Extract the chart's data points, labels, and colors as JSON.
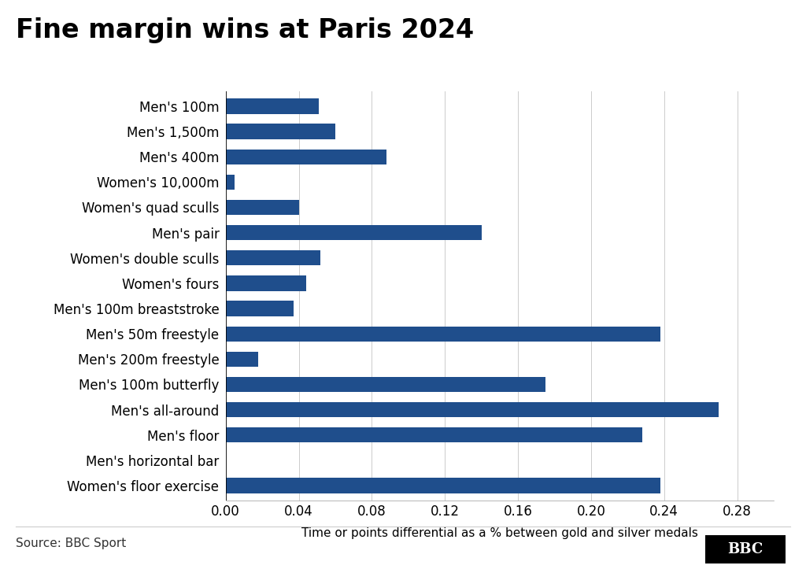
{
  "title": "Fine margin wins at Paris 2024",
  "categories": [
    "Men's 100m",
    "Men's 1,500m",
    "Men's 400m",
    "Women's 10,000m",
    "Women's quad sculls",
    "Men's pair",
    "Women's double sculls",
    "Women's fours",
    "Men's 100m breaststroke",
    "Men's 50m freestyle",
    "Men's 200m freestyle",
    "Men's 100m butterfly",
    "Men's all-around",
    "Men's floor",
    "Men's horizontal bar",
    "Women's floor exercise"
  ],
  "values": [
    0.051,
    0.06,
    0.088,
    0.005,
    0.04,
    0.14,
    0.052,
    0.044,
    0.037,
    0.238,
    0.018,
    0.175,
    0.27,
    0.228,
    0.0,
    0.238
  ],
  "bar_color": "#1f4e8c",
  "xlabel": "Time or points differential as a % between gold and silver medals",
  "xlim": [
    0,
    0.3
  ],
  "xticks": [
    0.0,
    0.04,
    0.08,
    0.12,
    0.16,
    0.2,
    0.24,
    0.28
  ],
  "xtick_labels": [
    "0.00",
    "0.04",
    "0.08",
    "0.12",
    "0.16",
    "0.20",
    "0.24",
    "0.28"
  ],
  "background_color": "#ffffff",
  "source_text": "Source: BBC Sport",
  "bbc_logo": "BBC",
  "title_fontsize": 24,
  "label_fontsize": 12,
  "tick_fontsize": 12,
  "xlabel_fontsize": 11,
  "source_fontsize": 11
}
